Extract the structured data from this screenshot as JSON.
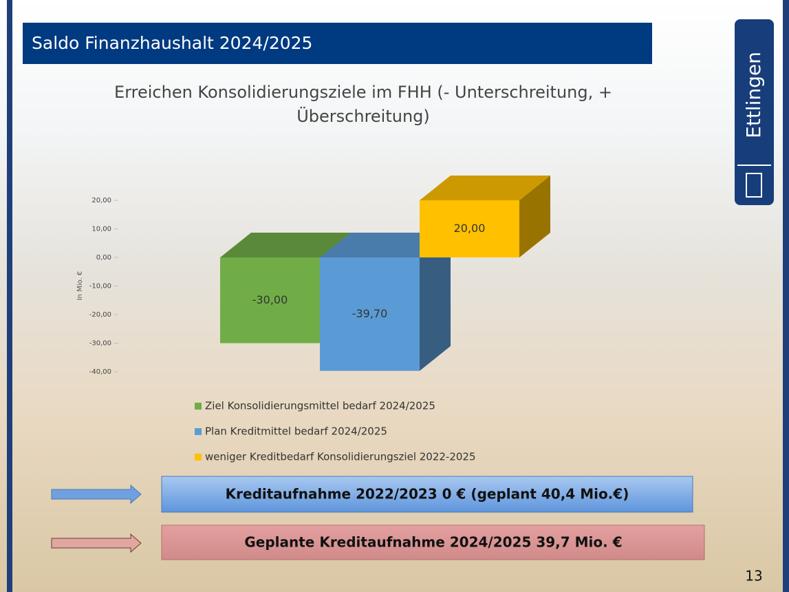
{
  "slide": {
    "heading": "Saldo Finanzhaushalt 2024/2025",
    "logo": "Ettlingen",
    "box1": "Kreditaufnahme 2022/2023 0 € (geplant 40,4 Mio.€)",
    "box2": "Geplante Kreditaufnahme 2024/2025  39,7 Mio. €",
    "page_number": "13"
  },
  "chart_data": {
    "type": "bar",
    "title_lines": [
      "Erreichen Konsolidierungsziele im FHH (- Unterschreitung, +",
      "Überschreitung)"
    ],
    "y_label": "In Mio. €",
    "ylim": [
      -40,
      20
    ],
    "yticks": [
      {
        "value": 20,
        "label": "20,00"
      },
      {
        "value": 10,
        "label": "10,00"
      },
      {
        "value": 0,
        "label": "0,00"
      },
      {
        "value": -10,
        "label": "-10,00"
      },
      {
        "value": -20,
        "label": "-20,00"
      },
      {
        "value": -30,
        "label": "-30,00"
      },
      {
        "value": -40,
        "label": "-40,00"
      }
    ],
    "series": [
      {
        "name": "Ziel Konsolidierungsmittel bedarf 2024/2025",
        "color": "#70ad47",
        "values": [
          -30
        ],
        "value_labels": [
          "-30,00"
        ]
      },
      {
        "name": "Plan Kreditmittel bedarf 2024/2025",
        "color": "#5b9bd5",
        "values": [
          -39.7
        ],
        "value_labels": [
          "-39,70"
        ]
      },
      {
        "name": "weniger Kreditbedarf Konsolidierungsziel 2022-2025",
        "color": "#ffc000",
        "values": [
          20
        ],
        "value_labels": [
          "20,00"
        ]
      }
    ]
  }
}
